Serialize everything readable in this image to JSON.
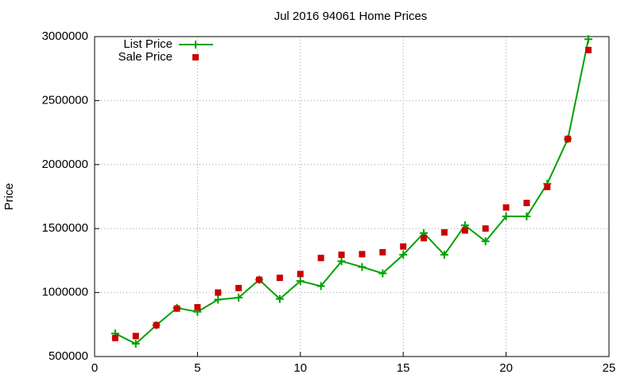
{
  "chart_data": {
    "type": "line",
    "title": "Jul 2016 94061 Home Prices",
    "y_label": "Price",
    "xlim": [
      0,
      25
    ],
    "xticks": [
      0,
      5,
      10,
      15,
      20,
      25
    ],
    "ylim": [
      500000,
      3000000
    ],
    "yticks": [
      500000,
      1000000,
      1500000,
      2000000,
      2500000,
      3000000
    ],
    "grid": true,
    "legend": "top-left",
    "x": [
      1,
      2,
      3,
      4,
      5,
      6,
      7,
      8,
      9,
      10,
      11,
      12,
      13,
      14,
      15,
      16,
      17,
      18,
      19,
      20,
      21,
      22,
      23,
      24
    ],
    "series": [
      {
        "name": "List Price",
        "color": "#00a000",
        "style": "linespoints",
        "values": [
          680000,
          600000,
          745000,
          880000,
          850000,
          945000,
          960000,
          1100000,
          950000,
          1090000,
          1050000,
          1245000,
          1200000,
          1150000,
          1295000,
          1465000,
          1295000,
          1525000,
          1400000,
          1595000,
          1595000,
          1850000,
          2200000,
          2980000
        ]
      },
      {
        "name": "Sale Price",
        "color": "#cc0000",
        "style": "points",
        "values": [
          645000,
          660000,
          745000,
          875000,
          885000,
          1000000,
          1035000,
          1100000,
          1115000,
          1145000,
          1270000,
          1295000,
          1300000,
          1315000,
          1360000,
          1425000,
          1470000,
          1485000,
          1500000,
          1665000,
          1700000,
          1825000,
          2200000,
          2895000
        ]
      }
    ]
  }
}
